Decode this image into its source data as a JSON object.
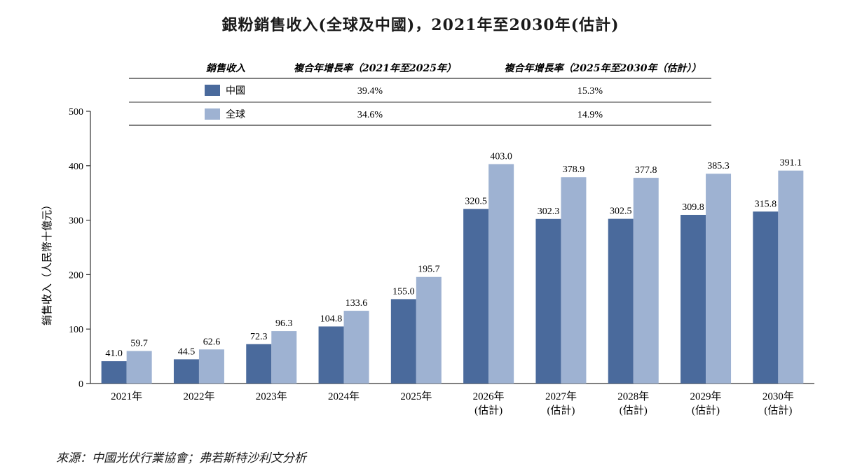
{
  "chart_data": {
    "type": "bar",
    "title": "銀粉銷售收入(全球及中國)，2021年至2030年(估計)",
    "ylabel": "銷售收入（人民幣十億元）",
    "ylim": [
      0,
      500
    ],
    "yticks": [
      "0",
      "100",
      "200",
      "300",
      "400",
      "500"
    ],
    "categories": [
      [
        "2021年"
      ],
      [
        "2022年"
      ],
      [
        "2023年"
      ],
      [
        "2024年"
      ],
      [
        "2025年"
      ],
      [
        "2026年",
        "(估計)"
      ],
      [
        "2027年",
        "(估計)"
      ],
      [
        "2028年",
        "(估計)"
      ],
      [
        "2029年",
        "(估計)"
      ],
      [
        "2030年",
        "(估計)"
      ]
    ],
    "series": [
      {
        "name": "中國",
        "color": "#4a6a9c",
        "values": [
          41.0,
          44.5,
          72.3,
          104.8,
          155.0,
          320.5,
          302.3,
          302.5,
          309.8,
          315.8
        ],
        "labels": [
          "41.0",
          "44.5",
          "72.3",
          "104.8",
          "155.0",
          "320.5",
          "302.3",
          "302.5",
          "309.8",
          "315.8"
        ]
      },
      {
        "name": "全球",
        "color": "#9eb2d2",
        "values": [
          59.7,
          62.6,
          96.3,
          133.6,
          195.7,
          403.0,
          378.9,
          377.8,
          385.3,
          391.1
        ],
        "labels": [
          "59.7",
          "62.6",
          "96.3",
          "133.6",
          "195.7",
          "403.0",
          "378.9",
          "377.8",
          "385.3",
          "391.1"
        ]
      }
    ],
    "grid": false
  },
  "cagr_table": {
    "headers": [
      "銷售收入",
      "複合年增長率（2021年至2025年）",
      "複合年增長率（2025年至2030年（估計））"
    ],
    "rows": [
      {
        "name": "中國",
        "color": "#4a6a9c",
        "cagr1": "39.4%",
        "cagr2": "15.3%"
      },
      {
        "name": "全球",
        "color": "#9eb2d2",
        "cagr1": "34.6%",
        "cagr2": "14.9%"
      }
    ]
  },
  "source": "來源：中國光伏行業協會；弗若斯特沙利文分析"
}
